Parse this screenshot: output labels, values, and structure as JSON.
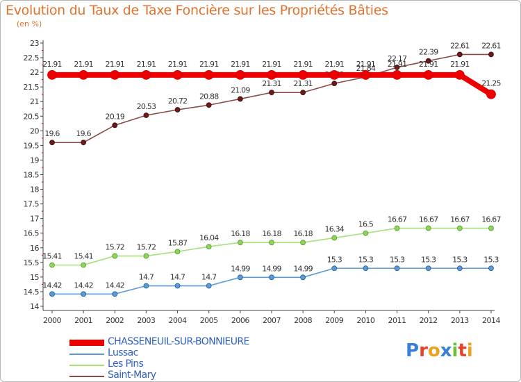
{
  "chart_data": {
    "type": "line",
    "title": "Evolution du Taux de Taxe Foncière sur les Propriétés Bâties",
    "subtitle": "(en %)",
    "x": [
      "2000",
      "2001",
      "2002",
      "2003",
      "2004",
      "2005",
      "2006",
      "2007",
      "2008",
      "2009",
      "2010",
      "2011",
      "2012",
      "2013",
      "2014"
    ],
    "ylim": [
      14,
      23
    ],
    "yticks": [
      "14",
      "14.5",
      "15",
      "15.5",
      "16",
      "16.5",
      "17",
      "17.5",
      "18",
      "18.5",
      "19",
      "19.5",
      "20",
      "20.5",
      "21",
      "21.5",
      "22",
      "22.5",
      "23"
    ],
    "grid": false,
    "legend_position": "bottom-left",
    "series": [
      {
        "name": "CHASSENEUIL-SUR-BONNIEURE",
        "color": "#ee0000",
        "values": [
          21.91,
          21.91,
          21.91,
          21.91,
          21.91,
          21.91,
          21.91,
          21.91,
          21.91,
          21.91,
          21.91,
          21.91,
          21.91,
          21.91,
          21.25
        ],
        "labels": [
          "21.91",
          "21.91",
          "21.91",
          "21.91",
          "21.91",
          "21.91",
          "21.91",
          "21.91",
          "21.91",
          "21.91",
          "21.91",
          "21.91",
          "21.91",
          "21.91",
          "21.25"
        ]
      },
      {
        "name": "Lussac",
        "color": "#5b9bd5",
        "values": [
          14.42,
          14.42,
          14.42,
          14.7,
          14.7,
          14.7,
          14.99,
          14.99,
          14.99,
          15.3,
          15.3,
          15.3,
          15.3,
          15.3,
          15.3
        ],
        "labels": [
          "14.42",
          "14.42",
          "14.42",
          "14.7",
          "14.7",
          "14.7",
          "14.99",
          "14.99",
          "14.99",
          "15.3",
          "15.3",
          "15.3",
          "15.3",
          "15.3",
          "15.3"
        ]
      },
      {
        "name": "Les Pins",
        "color": "#a6e07a",
        "values": [
          15.41,
          15.41,
          15.72,
          15.72,
          15.87,
          16.04,
          16.18,
          16.18,
          16.18,
          16.34,
          16.5,
          16.67,
          16.67,
          16.67,
          16.67
        ],
        "labels": [
          "15.41",
          "15.41",
          "15.72",
          "15.72",
          "15.87",
          "16.04",
          "16.18",
          "16.18",
          "16.18",
          "16.34",
          "16.5",
          "16.67",
          "16.67",
          "16.67",
          "16.67"
        ]
      },
      {
        "name": "Saint-Mary",
        "color": "#8b4a4a",
        "values": [
          19.6,
          19.6,
          20.19,
          20.53,
          20.72,
          20.88,
          21.09,
          21.31,
          21.31,
          21.62,
          21.84,
          22.17,
          22.39,
          22.61,
          22.61
        ],
        "labels": [
          "19.6",
          "19.6",
          "20.19",
          "20.53",
          "20.72",
          "20.88",
          "21.09",
          "21.31",
          "21.31",
          "21.62",
          "21.84",
          "22.17",
          "22.39",
          "22.61",
          "22.61"
        ]
      }
    ]
  },
  "logo_text": "Proxiti"
}
